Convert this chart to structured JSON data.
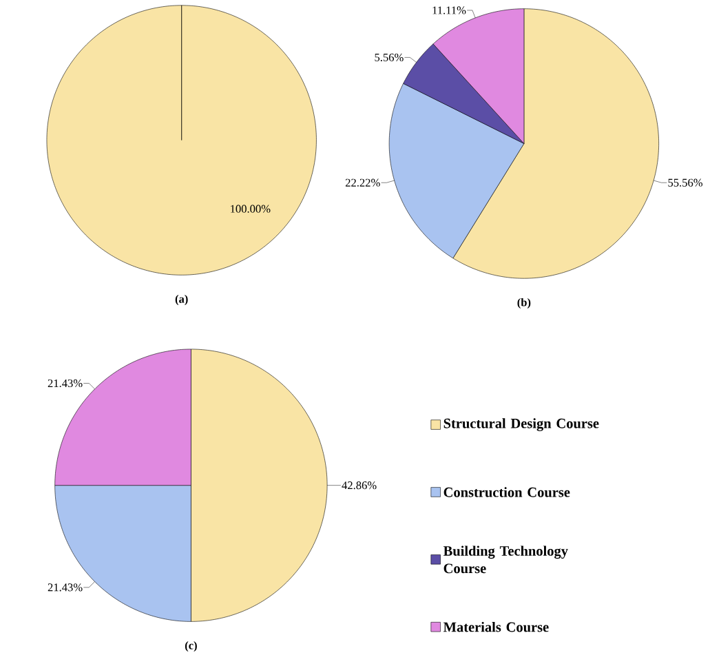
{
  "chart_data": [
    {
      "type": "pie",
      "title": "(a)",
      "categories": [
        null
      ],
      "values": [
        100
      ],
      "colors": [
        "#f9e4a5"
      ],
      "value_labels": [
        "100.00%"
      ]
    },
    {
      "type": "pie",
      "title": "(b)",
      "categories": [
        null,
        null,
        null,
        null
      ],
      "values": [
        55.56,
        22.22,
        5.56,
        11.11
      ],
      "colors": [
        "#f9e4a5",
        "#a9c3f0",
        "#5b4ea6",
        "#e089e0"
      ],
      "value_labels": [
        "55.56%",
        "22.22%",
        "5.56%",
        "11.11%"
      ]
    },
    {
      "type": "pie",
      "title": "(c)",
      "categories": [
        "Structural Design Course",
        "Construction Course",
        "Building Technology Course",
        "Materials Course"
      ],
      "values": [
        42.86,
        21.43,
        null,
        21.43
      ],
      "colors": [
        "#f9e4a5",
        "#a9c3f0",
        "#5b4ea6",
        "#e089e0"
      ],
      "value_labels": [
        "42.86%",
        "21.43%",
        null,
        "21.43%"
      ],
      "legend": "right"
    }
  ]
}
